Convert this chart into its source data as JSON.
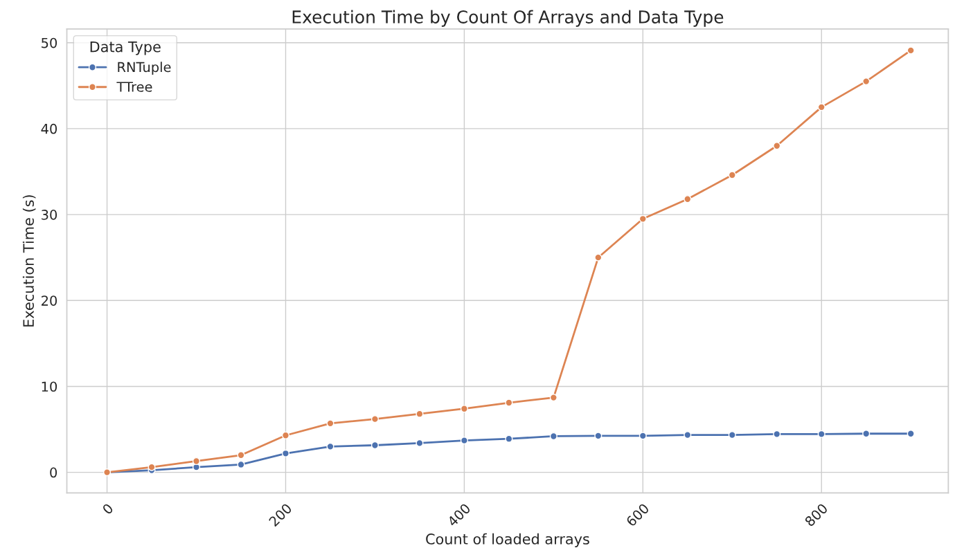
{
  "chart_data": {
    "type": "line",
    "title": "Execution Time by Count Of Arrays and Data Type",
    "xlabel": "Count of loaded arrays",
    "ylabel": "Execution Time (s)",
    "legend_title": "Data Type",
    "x": [
      0,
      50,
      100,
      150,
      200,
      250,
      300,
      350,
      400,
      450,
      500,
      550,
      600,
      650,
      700,
      750,
      800,
      850,
      900
    ],
    "series": [
      {
        "name": "RNTuple",
        "color": "#4c72b0",
        "values": [
          0,
          0.25,
          0.6,
          0.9,
          2.2,
          3.0,
          3.15,
          3.4,
          3.7,
          3.9,
          4.2,
          4.25,
          4.25,
          4.35,
          4.35,
          4.45,
          4.45,
          4.5,
          4.5
        ]
      },
      {
        "name": "TTree",
        "color": "#dd8452",
        "values": [
          0,
          0.6,
          1.3,
          2.0,
          4.3,
          5.7,
          6.2,
          6.8,
          7.4,
          8.1,
          8.7,
          25.0,
          29.5,
          31.8,
          34.6,
          38.0,
          42.5,
          45.5,
          49.1
        ]
      }
    ],
    "xlim": [
      -45,
      942
    ],
    "xticks": [
      0,
      200,
      400,
      600,
      800
    ],
    "ylim": [
      -2.4,
      51.6
    ],
    "yticks": [
      0,
      10,
      20,
      30,
      40,
      50
    ],
    "grid": true,
    "legend": "top left",
    "marker": "circle",
    "line_style": "solid"
  }
}
